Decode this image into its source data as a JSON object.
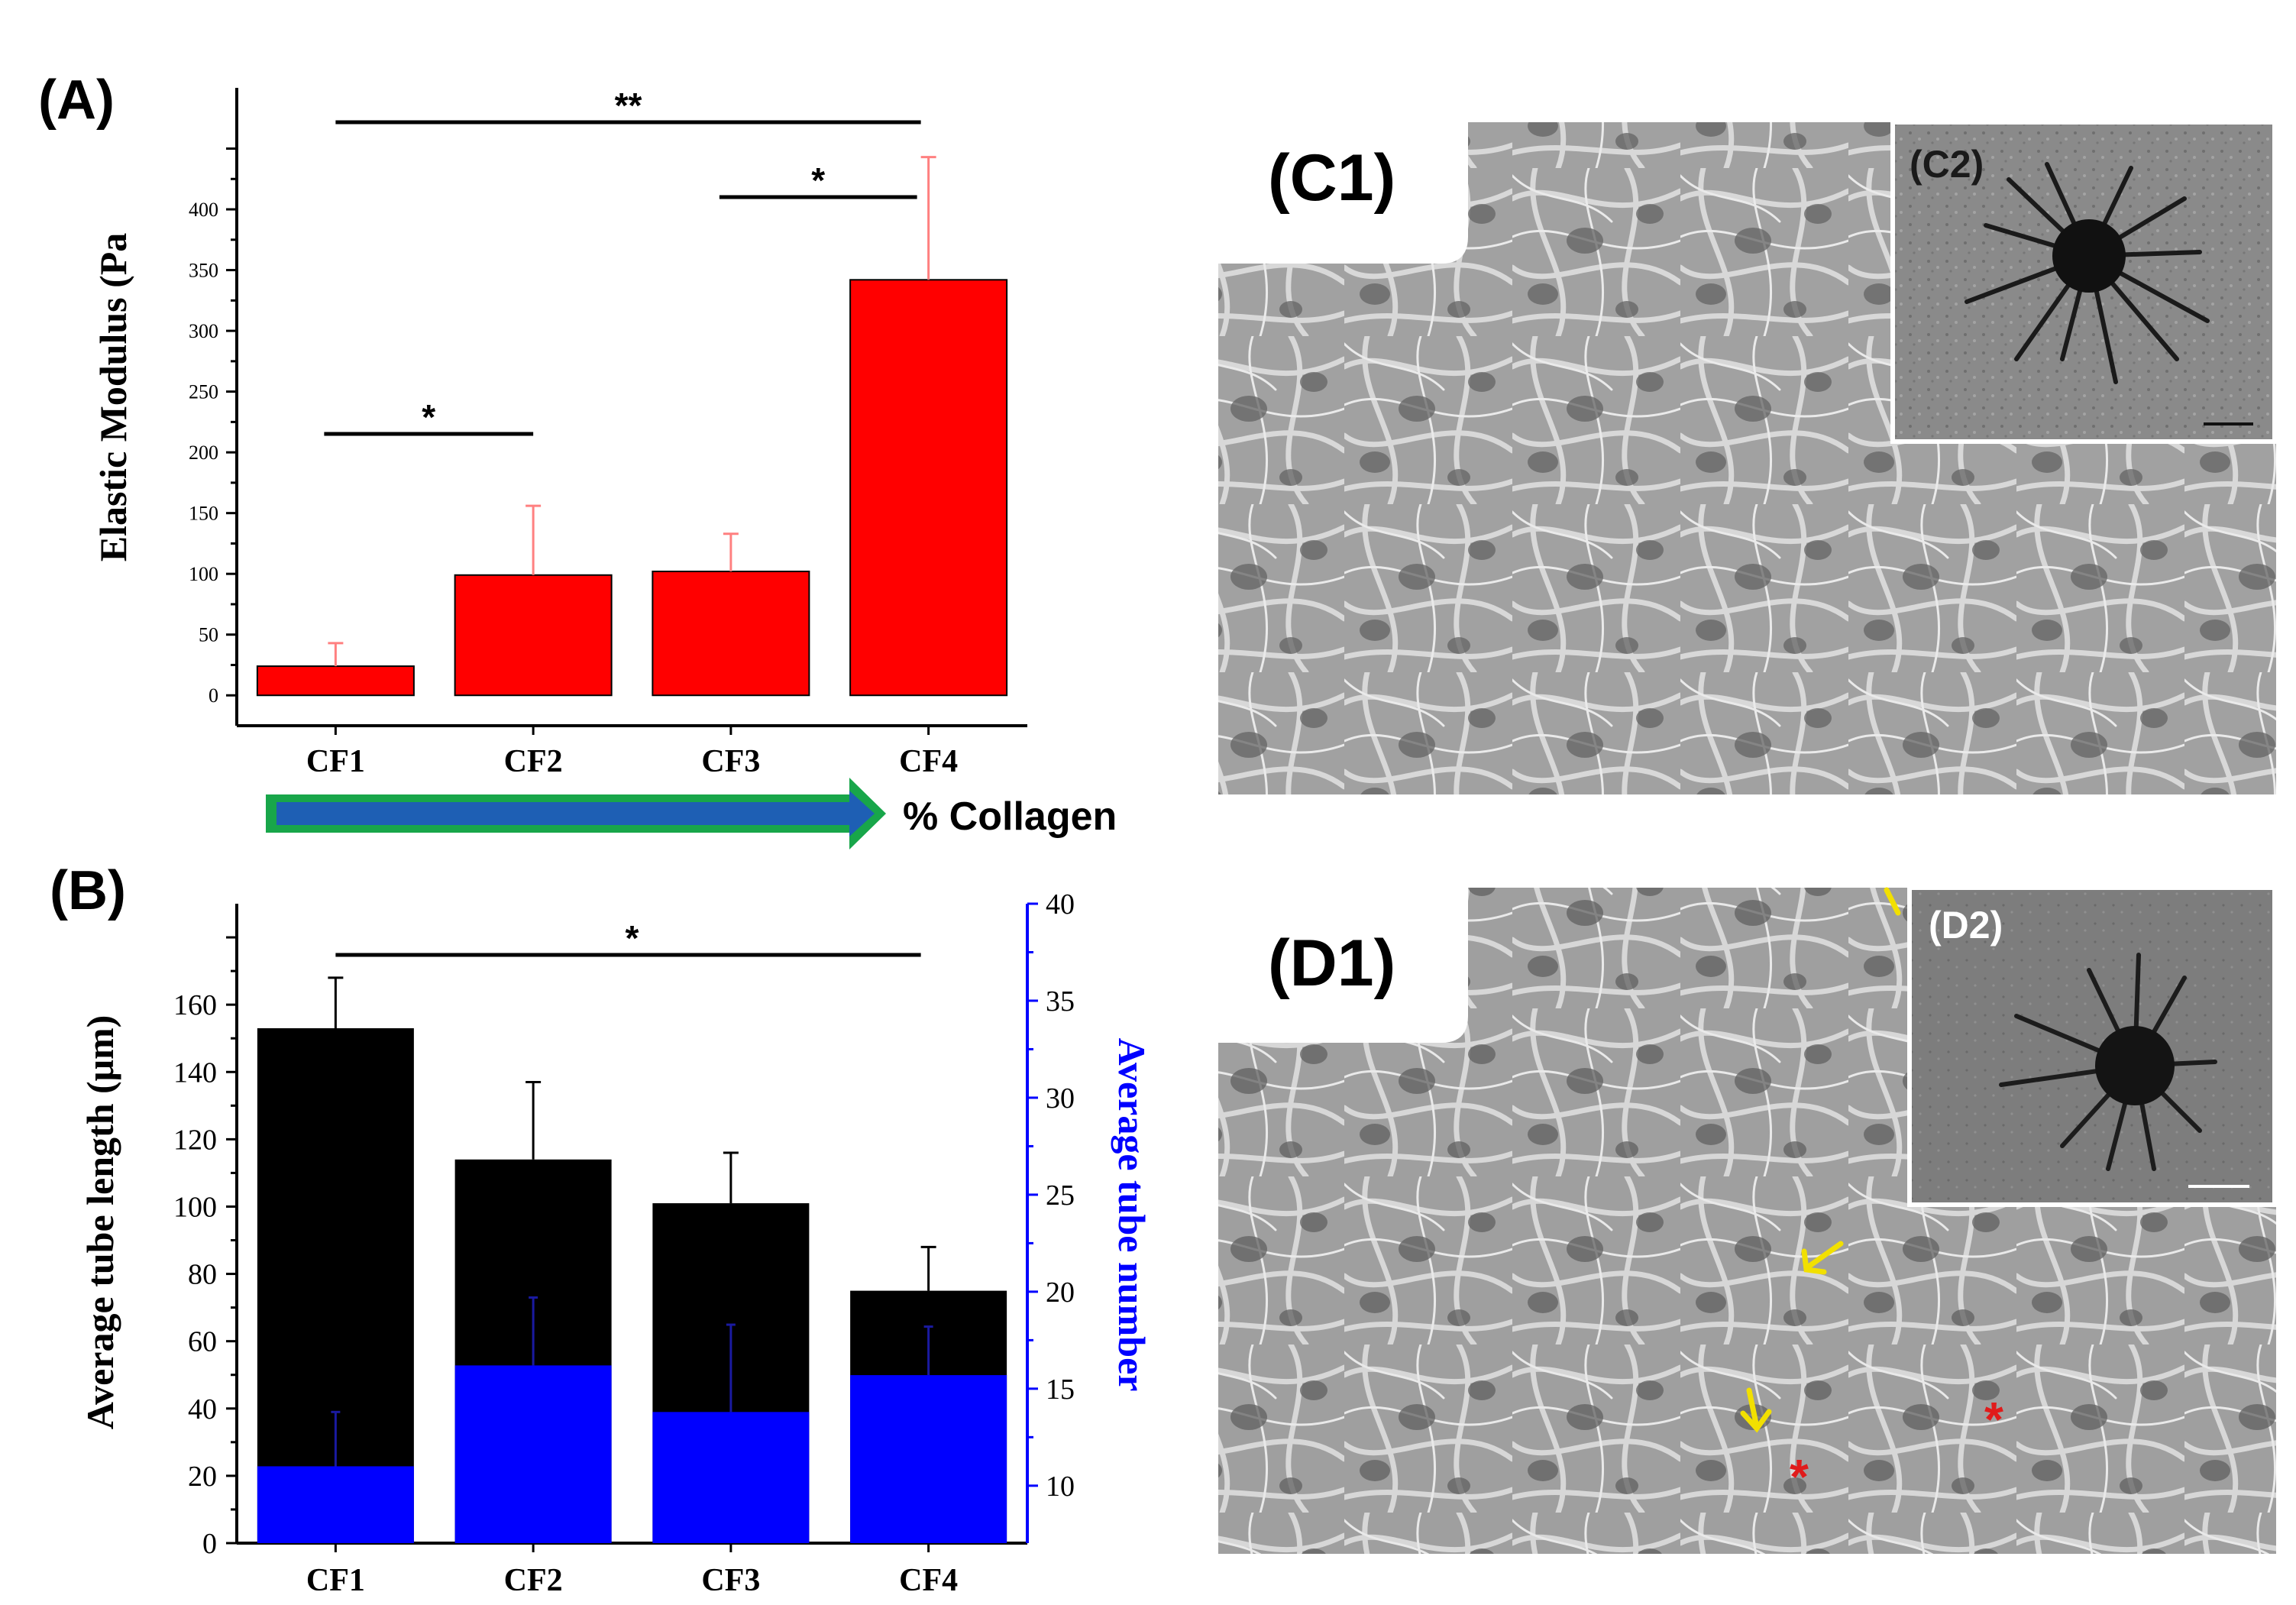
{
  "figure": {
    "panel_a_label": "(A)",
    "panel_b_label": "(B)",
    "panel_c1_label": "(C1)",
    "panel_c2_label": "(C2)",
    "panel_d1_label": "(D1)",
    "panel_d2_label": "(D2)",
    "collagen_arrow_label": "% Collagen",
    "colors": {
      "red_bar": "#ff0000",
      "black_bar": "#000000",
      "blue_bar": "#0000ff",
      "arrow_blue": "#1e5fb4",
      "arrow_green": "#18a64a",
      "sem_background": "#9a9a9a",
      "asterisk": "#e01b1b",
      "yellow_arrow": "#f2e000"
    }
  },
  "chart_data": [
    {
      "id": "A",
      "type": "bar",
      "title": "",
      "categories": [
        "CF1",
        "CF2",
        "CF3",
        "CF4"
      ],
      "series": [
        {
          "name": "Elastic Modulus",
          "values": [
            24,
            99,
            102,
            342
          ],
          "errors": [
            19,
            57,
            31,
            101
          ],
          "color": "#ff0000"
        }
      ],
      "xlabel": "",
      "ylabel": "Elastic Modulus (Pa",
      "ylim": [
        -25,
        500
      ],
      "yticks": [
        0,
        50,
        100,
        150,
        200,
        250,
        300,
        350,
        400
      ],
      "significance": [
        {
          "from": "CF1",
          "to": "CF4",
          "label": "**"
        },
        {
          "from": "CF3",
          "to": "CF4",
          "label": "*"
        },
        {
          "from": "CF1",
          "to": "CF2",
          "label": "*"
        }
      ]
    },
    {
      "id": "B",
      "type": "bar",
      "title": "",
      "categories": [
        "CF1",
        "CF2",
        "CF3",
        "CF4"
      ],
      "series": [
        {
          "name": "Average tube length",
          "axis": "left",
          "values": [
            153,
            114,
            101,
            75
          ],
          "errors": [
            15,
            23,
            15,
            13
          ],
          "color": "#000000"
        },
        {
          "name": "Average tube number",
          "axis": "right",
          "values": [
            11,
            16.2,
            13.8,
            15.7
          ],
          "errors": [
            2.8,
            3.5,
            4.5,
            2.5
          ],
          "color": "#0000ff"
        }
      ],
      "xlabel": "",
      "ylabel": "Average tube length (μm)",
      "ylabel_right": "Average tube number",
      "ylim": [
        0,
        190
      ],
      "ylim_right": [
        7.04,
        40
      ],
      "yticks": [
        0,
        20,
        40,
        60,
        80,
        100,
        120,
        140,
        160
      ],
      "yticks_right": [
        10,
        15,
        20,
        25,
        30,
        35,
        40
      ],
      "significance": [
        {
          "from": "CF1",
          "to": "CF4",
          "label": "*"
        }
      ]
    }
  ]
}
